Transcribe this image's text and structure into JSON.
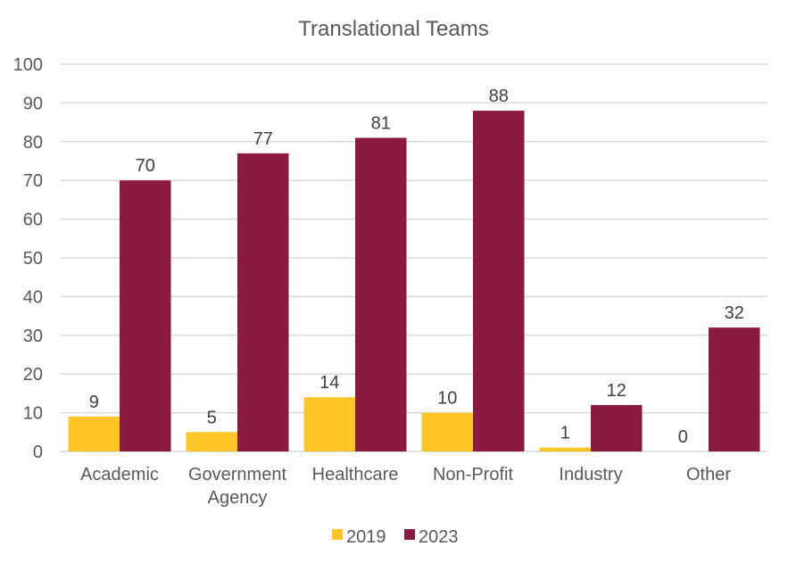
{
  "chart_data": {
    "type": "bar",
    "title": "Translational Teams",
    "categories": [
      "Academic",
      "Government Agency",
      "Healthcare",
      "Non-Profit",
      "Industry",
      "Other"
    ],
    "category_lines": [
      [
        "Academic"
      ],
      [
        "Government",
        "Agency"
      ],
      [
        "Healthcare"
      ],
      [
        "Non-Profit"
      ],
      [
        "Industry"
      ],
      [
        "Other"
      ]
    ],
    "series": [
      {
        "name": "2019",
        "values": [
          9,
          5,
          14,
          10,
          1,
          0
        ],
        "color": "#FFC527"
      },
      {
        "name": "2023",
        "values": [
          70,
          77,
          81,
          88,
          12,
          32
        ],
        "color": "#8B1A3F"
      }
    ],
    "xlabel": "",
    "ylabel": "",
    "ylim": [
      0,
      100
    ],
    "yticks": [
      0,
      10,
      20,
      30,
      40,
      50,
      60,
      70,
      80,
      90,
      100
    ],
    "grid": true,
    "legend_position": "bottom"
  }
}
